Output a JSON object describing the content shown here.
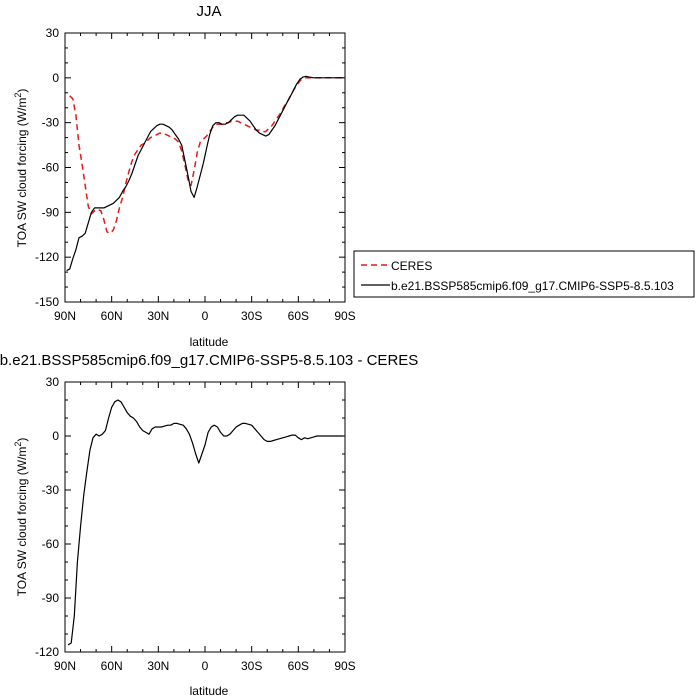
{
  "chart_data": [
    {
      "type": "line",
      "title": "JJA",
      "xlabel": "latitude",
      "ylabel": "TOA SW cloud forcing (W/m",
      "ylabel_superscript": "2",
      "ylabel_suffix": ")",
      "xlim": [
        90,
        -90
      ],
      "ylim": [
        -150,
        30
      ],
      "x_ticks": [
        {
          "value": 90,
          "label": "90N"
        },
        {
          "value": 60,
          "label": "60N"
        },
        {
          "value": 30,
          "label": "30N"
        },
        {
          "value": 0,
          "label": "0"
        },
        {
          "value": -30,
          "label": "30S"
        },
        {
          "value": -60,
          "label": "60S"
        },
        {
          "value": -90,
          "label": "90S"
        }
      ],
      "y_ticks": [
        30,
        0,
        -30,
        -60,
        -90,
        -120,
        -150
      ],
      "legend_position": "right",
      "series": [
        {
          "name": "CERES",
          "color": "#e31a1c",
          "dash": true,
          "points": [
            [
              87,
              -12
            ],
            [
              85,
              -14
            ],
            [
              83,
              -25
            ],
            [
              81,
              -45
            ],
            [
              79,
              -58
            ],
            [
              77,
              -72
            ],
            [
              75,
              -86
            ],
            [
              73,
              -91
            ],
            [
              71,
              -89
            ],
            [
              69,
              -88
            ],
            [
              67,
              -89
            ],
            [
              65,
              -95
            ],
            [
              63,
              -103
            ],
            [
              61,
              -104
            ],
            [
              59,
              -102
            ],
            [
              57,
              -96
            ],
            [
              55,
              -87
            ],
            [
              53,
              -80
            ],
            [
              51,
              -71
            ],
            [
              49,
              -63
            ],
            [
              47,
              -56
            ],
            [
              45,
              -51
            ],
            [
              43,
              -48
            ],
            [
              41,
              -45
            ],
            [
              39,
              -44
            ],
            [
              37,
              -42
            ],
            [
              35,
              -40
            ],
            [
              33,
              -39
            ],
            [
              31,
              -38
            ],
            [
              29,
              -37
            ],
            [
              27,
              -37
            ],
            [
              25,
              -38
            ],
            [
              23,
              -39
            ],
            [
              21,
              -40
            ],
            [
              19,
              -41
            ],
            [
              17,
              -43
            ],
            [
              15,
              -49
            ],
            [
              13,
              -58
            ],
            [
              11,
              -68
            ],
            [
              9,
              -72
            ],
            [
              7,
              -62
            ],
            [
              5,
              -50
            ],
            [
              3,
              -43
            ],
            [
              1,
              -41
            ],
            [
              -1,
              -39
            ],
            [
              -3,
              -36
            ],
            [
              -5,
              -33
            ],
            [
              -7,
              -31
            ],
            [
              -9,
              -31
            ],
            [
              -11,
              -31
            ],
            [
              -13,
              -30
            ],
            [
              -15,
              -30
            ],
            [
              -17,
              -29
            ],
            [
              -19,
              -29
            ],
            [
              -21,
              -29
            ],
            [
              -23,
              -30
            ],
            [
              -25,
              -31
            ],
            [
              -27,
              -32
            ],
            [
              -29,
              -33
            ],
            [
              -31,
              -34
            ],
            [
              -33,
              -35
            ],
            [
              -35,
              -35
            ],
            [
              -37,
              -36
            ],
            [
              -39,
              -36
            ],
            [
              -41,
              -34
            ],
            [
              -43,
              -32
            ],
            [
              -45,
              -29
            ],
            [
              -47,
              -26
            ],
            [
              -49,
              -23
            ],
            [
              -51,
              -19
            ],
            [
              -53,
              -16
            ],
            [
              -55,
              -12
            ],
            [
              -57,
              -8
            ],
            [
              -59,
              -5
            ],
            [
              -61,
              -2
            ],
            [
              -63,
              -0.5
            ],
            [
              -65,
              0
            ],
            [
              -67,
              0
            ],
            [
              -70,
              0
            ],
            [
              -75,
              0
            ],
            [
              -80,
              0
            ],
            [
              -85,
              0
            ],
            [
              -89,
              0
            ]
          ]
        },
        {
          "name": "b.e21.BSSP585cmip6.f09_g17.CMIP6-SSP5-8.5.103",
          "color": "#000000",
          "dash": false,
          "points": [
            [
              89,
              -129
            ],
            [
              87,
              -128
            ],
            [
              85,
              -121
            ],
            [
              83,
              -115
            ],
            [
              81,
              -107
            ],
            [
              79,
              -106
            ],
            [
              77,
              -104
            ],
            [
              75,
              -97
            ],
            [
              73,
              -90
            ],
            [
              71,
              -87
            ],
            [
              69,
              -87
            ],
            [
              67,
              -87
            ],
            [
              65,
              -87
            ],
            [
              63,
              -86
            ],
            [
              61,
              -85
            ],
            [
              59,
              -84
            ],
            [
              57,
              -82
            ],
            [
              55,
              -80
            ],
            [
              53,
              -76
            ],
            [
              51,
              -73
            ],
            [
              49,
              -69
            ],
            [
              47,
              -64
            ],
            [
              45,
              -58
            ],
            [
              43,
              -52
            ],
            [
              41,
              -48
            ],
            [
              39,
              -44
            ],
            [
              37,
              -40
            ],
            [
              35,
              -36
            ],
            [
              33,
              -34
            ],
            [
              31,
              -32
            ],
            [
              29,
              -31
            ],
            [
              27,
              -31
            ],
            [
              25,
              -32
            ],
            [
              23,
              -33
            ],
            [
              21,
              -35
            ],
            [
              19,
              -38
            ],
            [
              17,
              -41
            ],
            [
              15,
              -45
            ],
            [
              13,
              -55
            ],
            [
              11,
              -65
            ],
            [
              9,
              -76
            ],
            [
              7,
              -80
            ],
            [
              5,
              -73
            ],
            [
              3,
              -65
            ],
            [
              1,
              -57
            ],
            [
              -1,
              -47
            ],
            [
              -3,
              -38
            ],
            [
              -5,
              -32
            ],
            [
              -7,
              -30
            ],
            [
              -9,
              -30
            ],
            [
              -11,
              -31
            ],
            [
              -13,
              -31
            ],
            [
              -15,
              -30
            ],
            [
              -17,
              -28
            ],
            [
              -19,
              -26
            ],
            [
              -21,
              -25
            ],
            [
              -23,
              -25
            ],
            [
              -25,
              -25
            ],
            [
              -27,
              -27
            ],
            [
              -29,
              -29
            ],
            [
              -31,
              -32
            ],
            [
              -33,
              -35
            ],
            [
              -35,
              -37
            ],
            [
              -37,
              -38
            ],
            [
              -39,
              -39
            ],
            [
              -41,
              -38
            ],
            [
              -43,
              -35
            ],
            [
              -45,
              -32
            ],
            [
              -47,
              -28
            ],
            [
              -49,
              -24
            ],
            [
              -51,
              -20
            ],
            [
              -53,
              -16
            ],
            [
              -55,
              -12
            ],
            [
              -57,
              -8
            ],
            [
              -59,
              -4
            ],
            [
              -61,
              -1
            ],
            [
              -63,
              0.5
            ],
            [
              -65,
              1
            ],
            [
              -67,
              0.5
            ],
            [
              -70,
              0
            ],
            [
              -75,
              0
            ],
            [
              -80,
              0
            ],
            [
              -85,
              0
            ],
            [
              -89,
              0
            ]
          ]
        }
      ]
    },
    {
      "type": "line",
      "title": "b.e21.BSSP585cmip6.f09_g17.CMIP6-SSP5-8.5.103 - CERES",
      "xlabel": "latitude",
      "ylabel": "TOA SW cloud forcing (W/m",
      "ylabel_superscript": "2",
      "ylabel_suffix": ")",
      "xlim": [
        90,
        -90
      ],
      "ylim": [
        -120,
        30
      ],
      "x_ticks": [
        {
          "value": 90,
          "label": "90N"
        },
        {
          "value": 60,
          "label": "60N"
        },
        {
          "value": 30,
          "label": "30N"
        },
        {
          "value": 0,
          "label": "0"
        },
        {
          "value": -30,
          "label": "30S"
        },
        {
          "value": -60,
          "label": "60S"
        },
        {
          "value": -90,
          "label": "90S"
        }
      ],
      "y_ticks": [
        30,
        0,
        -30,
        -60,
        -90,
        -120
      ],
      "series": [
        {
          "color": "#000000",
          "dash": false,
          "points": [
            [
              88,
              -116
            ],
            [
              86,
              -115
            ],
            [
              84,
              -100
            ],
            [
              82,
              -70
            ],
            [
              80,
              -50
            ],
            [
              78,
              -33
            ],
            [
              76,
              -20
            ],
            [
              74,
              -8
            ],
            [
              72,
              -1
            ],
            [
              70,
              1
            ],
            [
              68,
              0
            ],
            [
              66,
              1
            ],
            [
              64,
              3
            ],
            [
              62,
              10
            ],
            [
              60,
              16
            ],
            [
              58,
              19
            ],
            [
              56,
              20
            ],
            [
              54,
              19
            ],
            [
              52,
              16
            ],
            [
              50,
              13
            ],
            [
              48,
              11
            ],
            [
              46,
              10
            ],
            [
              44,
              8
            ],
            [
              42,
              5
            ],
            [
              40,
              3
            ],
            [
              38,
              2
            ],
            [
              36,
              1
            ],
            [
              34,
              4
            ],
            [
              32,
              5
            ],
            [
              30,
              5
            ],
            [
              28,
              5
            ],
            [
              26,
              5.5
            ],
            [
              24,
              6
            ],
            [
              22,
              6
            ],
            [
              20,
              7
            ],
            [
              18,
              7
            ],
            [
              16,
              6.5
            ],
            [
              14,
              6
            ],
            [
              12,
              4
            ],
            [
              10,
              1
            ],
            [
              8,
              -4
            ],
            [
              6,
              -10
            ],
            [
              4,
              -15
            ],
            [
              2,
              -10
            ],
            [
              0,
              -5
            ],
            [
              -2,
              2
            ],
            [
              -4,
              5
            ],
            [
              -6,
              6
            ],
            [
              -8,
              5
            ],
            [
              -10,
              2
            ],
            [
              -12,
              0
            ],
            [
              -14,
              0
            ],
            [
              -16,
              1
            ],
            [
              -18,
              3
            ],
            [
              -20,
              5
            ],
            [
              -22,
              6
            ],
            [
              -24,
              7
            ],
            [
              -26,
              7
            ],
            [
              -28,
              6.5
            ],
            [
              -30,
              6
            ],
            [
              -32,
              4
            ],
            [
              -34,
              2
            ],
            [
              -36,
              0
            ],
            [
              -38,
              -2
            ],
            [
              -40,
              -3
            ],
            [
              -42,
              -3
            ],
            [
              -44,
              -2.5
            ],
            [
              -46,
              -2
            ],
            [
              -48,
              -1.5
            ],
            [
              -50,
              -1
            ],
            [
              -52,
              -0.5
            ],
            [
              -54,
              0
            ],
            [
              -56,
              0.5
            ],
            [
              -58,
              0.5
            ],
            [
              -60,
              -1
            ],
            [
              -62,
              -2
            ],
            [
              -64,
              -1
            ],
            [
              -66,
              -1.5
            ],
            [
              -68,
              -1
            ],
            [
              -70,
              -0.5
            ],
            [
              -72,
              0
            ],
            [
              -74,
              0
            ],
            [
              -78,
              0
            ],
            [
              -82,
              0
            ],
            [
              -86,
              0
            ],
            [
              -89,
              0
            ]
          ]
        }
      ]
    }
  ]
}
